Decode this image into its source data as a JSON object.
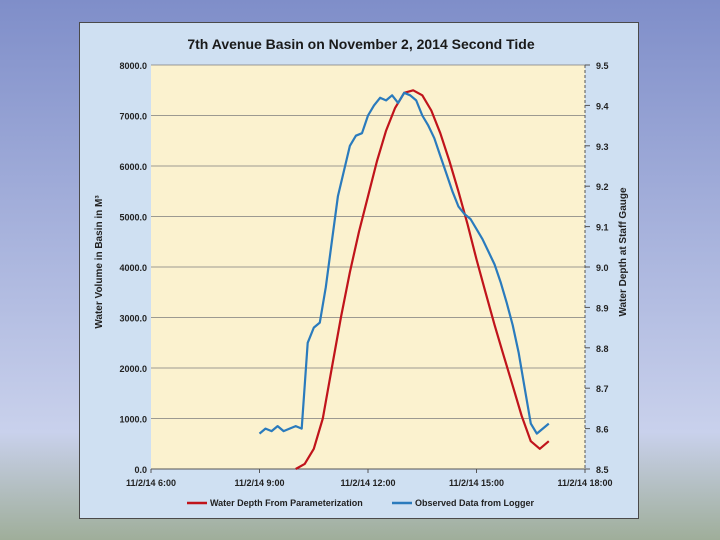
{
  "chart_data": {
    "type": "line",
    "title": "7th Avenue Basin on November 2, 2014 Second Tide",
    "ylabel": "Water  Volume  in  Basin in M³",
    "y2label": "Water Depth at Staff Gauge",
    "x_axis_type": "time",
    "xlim": [
      "11/2/14 6:00",
      "11/2/14 18:00"
    ],
    "x_ticks": [
      "11/2/14 6:00",
      "11/2/14 9:00",
      "11/2/14 12:00",
      "11/2/14 15:00",
      "11/2/14 18:00"
    ],
    "ylim": [
      0,
      8000
    ],
    "y_ticks": [
      "0.0",
      "1000.0",
      "2000.0",
      "3000.0",
      "4000.0",
      "5000.0",
      "6000.0",
      "7000.0",
      "8000.0"
    ],
    "y2lim": [
      8.5,
      9.5
    ],
    "y2_ticks": [
      "8.5",
      "8.6",
      "8.7",
      "8.8",
      "8.9",
      "9.0",
      "9.1",
      "9.2",
      "9.3",
      "9.4",
      "9.5"
    ],
    "grid": "horizontal",
    "legend_position": "bottom",
    "series": [
      {
        "name": "Water Depth From Parameterization",
        "color": "#c0141b",
        "axis": "left",
        "x": [
          "11/2/14 10:00",
          "11/2/14 10:15",
          "11/2/14 10:30",
          "11/2/14 10:45",
          "11/2/14 11:00",
          "11/2/14 11:15",
          "11/2/14 11:30",
          "11/2/14 11:45",
          "11/2/14 12:00",
          "11/2/14 12:15",
          "11/2/14 12:30",
          "11/2/14 12:45",
          "11/2/14 13:00",
          "11/2/14 13:15",
          "11/2/14 13:30",
          "11/2/14 13:45",
          "11/2/14 14:00",
          "11/2/14 14:15",
          "11/2/14 14:30",
          "11/2/14 14:45",
          "11/2/14 15:00",
          "11/2/14 15:15",
          "11/2/14 15:30",
          "11/2/14 15:45",
          "11/2/14 16:00",
          "11/2/14 16:15",
          "11/2/14 16:30",
          "11/2/14 16:45",
          "11/2/14 17:00"
        ],
        "values": [
          0,
          100,
          400,
          1000,
          2000,
          3000,
          3900,
          4700,
          5400,
          6100,
          6700,
          7150,
          7450,
          7500,
          7400,
          7100,
          6650,
          6100,
          5500,
          4850,
          4150,
          3500,
          2850,
          2250,
          1650,
          1050,
          550,
          400,
          550
        ]
      },
      {
        "name": "Observed Data from Logger",
        "color": "#2a7bbd",
        "axis": "left",
        "x": [
          "11/2/14 9:00",
          "11/2/14 9:10",
          "11/2/14 9:20",
          "11/2/14 9:30",
          "11/2/14 9:40",
          "11/2/14 9:50",
          "11/2/14 10:00",
          "11/2/14 10:10",
          "11/2/14 10:20",
          "11/2/14 10:30",
          "11/2/14 10:40",
          "11/2/14 10:50",
          "11/2/14 11:00",
          "11/2/14 11:10",
          "11/2/14 11:20",
          "11/2/14 11:30",
          "11/2/14 11:40",
          "11/2/14 11:50",
          "11/2/14 12:00",
          "11/2/14 12:10",
          "11/2/14 12:20",
          "11/2/14 12:30",
          "11/2/14 12:40",
          "11/2/14 12:50",
          "11/2/14 13:00",
          "11/2/14 13:10",
          "11/2/14 13:20",
          "11/2/14 13:30",
          "11/2/14 13:40",
          "11/2/14 13:50",
          "11/2/14 14:00",
          "11/2/14 14:10",
          "11/2/14 14:20",
          "11/2/14 14:30",
          "11/2/14 14:40",
          "11/2/14 14:50",
          "11/2/14 15:00",
          "11/2/14 15:10",
          "11/2/14 15:20",
          "11/2/14 15:30",
          "11/2/14 15:40",
          "11/2/14 15:50",
          "11/2/14 16:00",
          "11/2/14 16:10",
          "11/2/14 16:20",
          "11/2/14 16:30",
          "11/2/14 16:40",
          "11/2/14 16:50",
          "11/2/14 17:00"
        ],
        "values": [
          700,
          800,
          750,
          850,
          750,
          800,
          850,
          800,
          2500,
          2800,
          2900,
          3600,
          4500,
          5400,
          5900,
          6400,
          6600,
          6650,
          7000,
          7200,
          7350,
          7300,
          7400,
          7250,
          7450,
          7400,
          7300,
          7000,
          6800,
          6550,
          6200,
          5850,
          5500,
          5200,
          5050,
          4950,
          4750,
          4550,
          4300,
          4050,
          3700,
          3300,
          2850,
          2300,
          1600,
          900,
          700,
          800,
          900
        ]
      }
    ]
  }
}
